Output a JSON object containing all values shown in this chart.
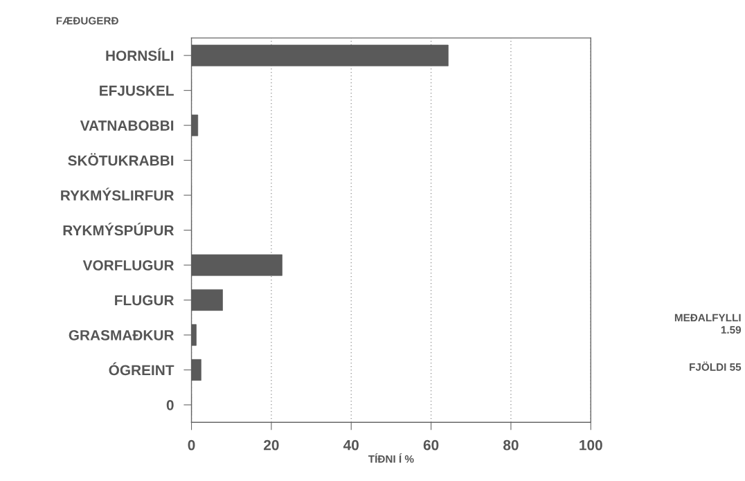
{
  "chart_data": {
    "type": "bar",
    "orientation": "horizontal",
    "title": "FÆÐUGERÐ",
    "xlabel": "TÍÐNI Í %",
    "categories": [
      "HORNSÍLI",
      "EFJUSKEL",
      "VATNABOBBI",
      "SKÖTUKRABBI",
      "RYKMÝSLIRFUR",
      "RYKMÝSPÚPUR",
      "VORFLUGUR",
      "FLUGUR",
      "GRASMAÐKUR",
      "ÓGREINT",
      "0"
    ],
    "values": [
      64.3,
      0,
      1.6,
      0,
      0,
      0,
      22.7,
      7.8,
      1.2,
      2.4,
      0
    ],
    "color": "#5a5a5a",
    "xlim": [
      0,
      100
    ],
    "xticks": [
      0,
      20,
      40,
      60,
      80,
      100
    ],
    "grid": "x",
    "legend": false,
    "annotations": [
      "MEÐALFYLLI\n1.59",
      "FJÖLDI 55"
    ]
  }
}
